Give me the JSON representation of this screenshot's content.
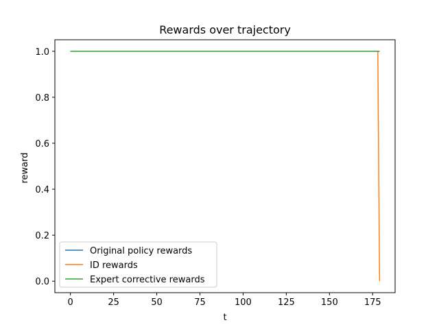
{
  "chart_data": {
    "type": "line",
    "title": "Rewards over trajectory",
    "xlabel": "t",
    "ylabel": "reward",
    "xlim": [
      -9,
      188
    ],
    "ylim": [
      -0.05,
      1.05
    ],
    "xticks": [
      0,
      25,
      50,
      75,
      100,
      125,
      150,
      175
    ],
    "yticks": [
      0.0,
      0.2,
      0.4,
      0.6,
      0.8,
      1.0
    ],
    "ytick_labels": [
      "0.0",
      "0.2",
      "0.4",
      "0.6",
      "0.8",
      "1.0"
    ],
    "grid": false,
    "legend": "lower-left",
    "series": [
      {
        "name": "Original policy rewards",
        "color": "#1f77b4",
        "x": [
          0,
          179
        ],
        "y": [
          1.0,
          1.0
        ]
      },
      {
        "name": "ID rewards",
        "color": "#ff7f0e",
        "x": [
          0,
          178,
          179
        ],
        "y": [
          1.0,
          1.0,
          0.0
        ]
      },
      {
        "name": "Expert corrective rewards",
        "color": "#2ca02c",
        "x": [
          0,
          179
        ],
        "y": [
          1.0,
          1.0
        ]
      }
    ]
  }
}
